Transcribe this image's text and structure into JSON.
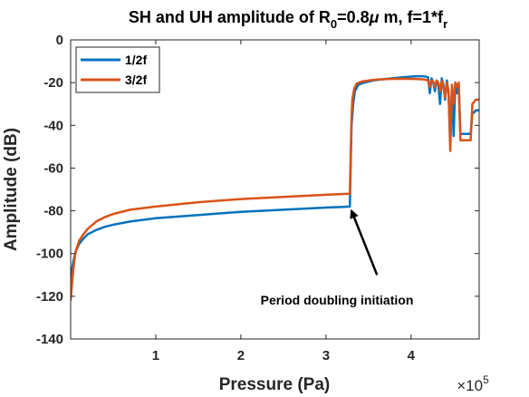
{
  "chart_data": {
    "type": "line",
    "title_parts": {
      "prefix": "SH and UH amplitude of R",
      "sub1": "0",
      "mid": "=0.8",
      "mu": "μ",
      "after_mu": " m, f=1*f",
      "sub2": "r"
    },
    "xlabel": "Pressure (Pa)",
    "ylabel": "Amplitude (dB)",
    "x_multiplier": {
      "base": "×10",
      "exp": "5"
    },
    "xlim": [
      0,
      4.8
    ],
    "ylim": [
      -140,
      0
    ],
    "xticks": [
      1,
      2,
      3,
      4
    ],
    "xtick_labels": [
      "1",
      "2",
      "3",
      "4"
    ],
    "yticks": [
      0,
      -20,
      -40,
      -60,
      -80,
      -100,
      -120,
      -140
    ],
    "ytick_labels": [
      "0",
      "-20",
      "-40",
      "-60",
      "-80",
      "-100",
      "-120",
      "-140"
    ],
    "grid": false,
    "legend_position": "top-left",
    "annotation": {
      "text": "Period doubling initiation",
      "points_to": {
        "x": 3.3,
        "y": -80
      },
      "arrow_from": {
        "x": 3.6,
        "y": -110
      }
    },
    "series": [
      {
        "name": "1/2f",
        "color": "#0072BD",
        "x": [
          0.0,
          0.03,
          0.06,
          0.1,
          0.15,
          0.2,
          0.3,
          0.4,
          0.5,
          0.7,
          1.0,
          1.5,
          2.0,
          2.5,
          3.0,
          3.28,
          3.3,
          3.32,
          3.34,
          3.38,
          3.45,
          3.55,
          3.7,
          3.9,
          4.05,
          4.15,
          4.2,
          4.22,
          4.24,
          4.26,
          4.28,
          4.3,
          4.32,
          4.34,
          4.36,
          4.38,
          4.4,
          4.42,
          4.44,
          4.46,
          4.48,
          4.5,
          4.52,
          4.54,
          4.56,
          4.58,
          4.6,
          4.62,
          4.64,
          4.66,
          4.68,
          4.7,
          4.72,
          4.74,
          4.76,
          4.8
        ],
        "values": [
          -112,
          -104,
          -99,
          -95.5,
          -93,
          -91,
          -89,
          -87.5,
          -86.5,
          -85,
          -83.5,
          -82,
          -80.5,
          -79.5,
          -78.5,
          -78,
          -40,
          -30,
          -24,
          -21,
          -20,
          -19,
          -18.3,
          -17.5,
          -17.0,
          -17.0,
          -17.5,
          -25,
          -18,
          -20,
          -24,
          -19,
          -21,
          -30,
          -18,
          -21,
          -28,
          -19,
          -25,
          -48,
          -22,
          -45,
          -20,
          -25,
          -21,
          -44,
          -44,
          -44,
          -44,
          -44,
          -44,
          -44,
          -34,
          -34,
          -33,
          -33
        ]
      },
      {
        "name": "3/2f",
        "color": "#D95319",
        "x": [
          0.0,
          0.02,
          0.04,
          0.06,
          0.1,
          0.15,
          0.2,
          0.3,
          0.4,
          0.5,
          0.7,
          1.0,
          1.5,
          2.0,
          2.5,
          3.0,
          3.28,
          3.3,
          3.31,
          3.33,
          3.36,
          3.42,
          3.5,
          3.6,
          3.75,
          3.9,
          4.05,
          4.15,
          4.2,
          4.22,
          4.24,
          4.26,
          4.28,
          4.3,
          4.32,
          4.34,
          4.36,
          4.38,
          4.4,
          4.42,
          4.44,
          4.46,
          4.48,
          4.5,
          4.52,
          4.54,
          4.56,
          4.58,
          4.6,
          4.62,
          4.64,
          4.66,
          4.68,
          4.7,
          4.72,
          4.74,
          4.76,
          4.8
        ],
        "values": [
          -122,
          -112,
          -104,
          -99,
          -94,
          -91,
          -88.5,
          -85,
          -83,
          -81.5,
          -79.5,
          -78,
          -76,
          -74.5,
          -73.5,
          -72.5,
          -72,
          -36,
          -28,
          -23,
          -20.5,
          -19.5,
          -19,
          -18.6,
          -18.3,
          -18.2,
          -18.3,
          -18.5,
          -19,
          -22,
          -19,
          -19.5,
          -22,
          -19,
          -20,
          -24,
          -19,
          -22,
          -27,
          -20,
          -24,
          -52,
          -21,
          -30,
          -20,
          -22,
          -20,
          -47,
          -47,
          -47,
          -47,
          -47,
          -47,
          -47,
          -30,
          -29,
          -28,
          -28
        ]
      }
    ]
  }
}
